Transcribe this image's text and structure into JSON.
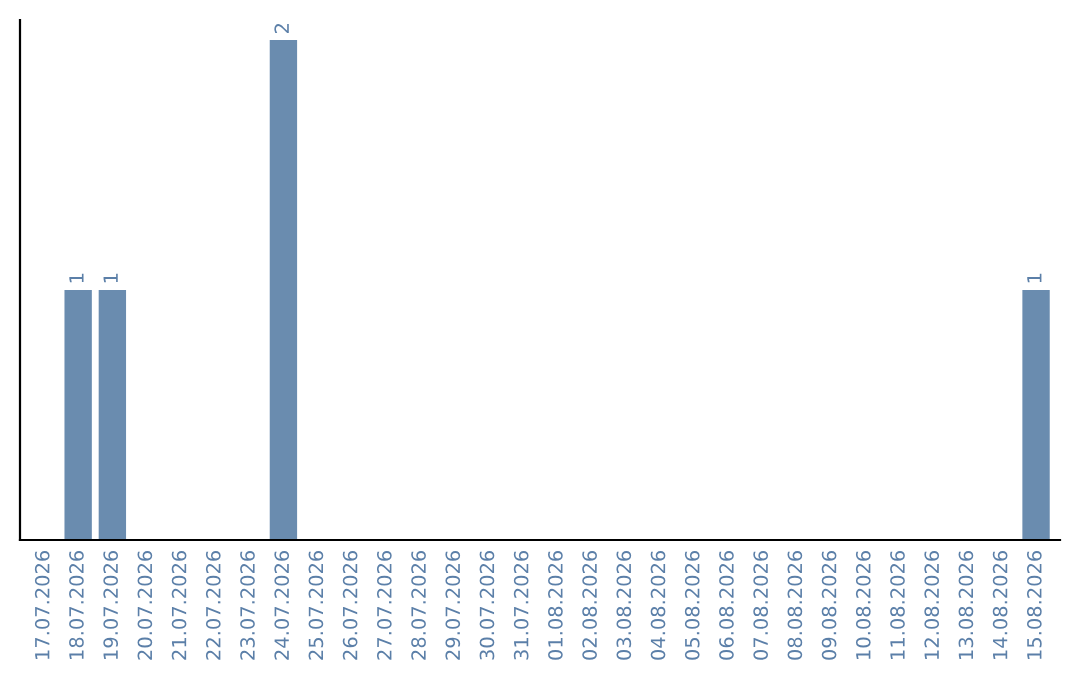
{
  "chart_data": {
    "type": "bar",
    "categories": [
      "17.07.2026",
      "18.07.2026",
      "19.07.2026",
      "20.07.2026",
      "21.07.2026",
      "22.07.2026",
      "23.07.2026",
      "24.07.2026",
      "25.07.2026",
      "26.07.2026",
      "27.07.2026",
      "28.07.2026",
      "29.07.2026",
      "30.07.2026",
      "31.07.2026",
      "01.08.2026",
      "02.08.2026",
      "03.08.2026",
      "04.08.2026",
      "05.08.2026",
      "06.08.2026",
      "07.08.2026",
      "08.08.2026",
      "09.08.2026",
      "10.08.2026",
      "11.08.2026",
      "12.08.2026",
      "13.08.2026",
      "14.08.2026",
      "15.08.2026"
    ],
    "values": [
      0,
      1,
      1,
      0,
      0,
      0,
      0,
      2,
      0,
      0,
      0,
      0,
      0,
      0,
      0,
      0,
      0,
      0,
      0,
      0,
      0,
      0,
      0,
      0,
      0,
      0,
      0,
      0,
      0,
      1
    ],
    "value_labels": [
      null,
      "1",
      "1",
      null,
      null,
      null,
      null,
      "2",
      null,
      null,
      null,
      null,
      null,
      null,
      null,
      null,
      null,
      null,
      null,
      null,
      null,
      null,
      null,
      null,
      null,
      null,
      null,
      null,
      null,
      "1"
    ],
    "color": "#6a8caf",
    "tick_labels": "x",
    "grid": false,
    "legend": false
  }
}
